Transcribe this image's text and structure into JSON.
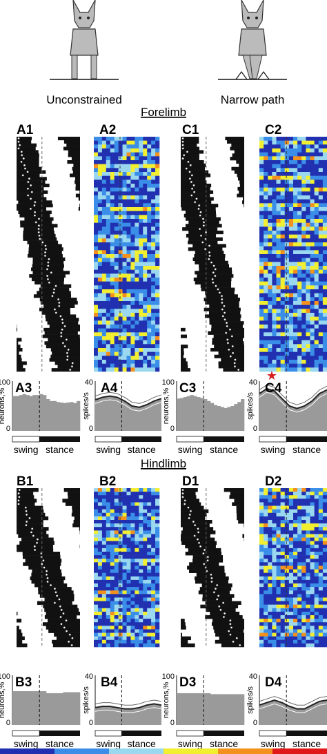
{
  "header": {
    "conditions": [
      "Unconstrained",
      "Narrow path"
    ],
    "limbs": [
      "Forelimb",
      "Hindlimb"
    ]
  },
  "panel_labels": {
    "forelimb": [
      "A1",
      "A2",
      "C1",
      "C2",
      "A3",
      "A4",
      "C3",
      "C4"
    ],
    "hindlimb": [
      "B1",
      "B2",
      "D1",
      "D2",
      "B3",
      "B4",
      "D3",
      "D4"
    ]
  },
  "axes": {
    "neurons_ylabel": "neurons,%",
    "spikes_ylabel": "spikes/s",
    "neurons_ytick_top": "100",
    "neurons_ytick_bottom": "0",
    "spikes_ytick_top": "40",
    "spikes_ytick_bottom": "0",
    "phase_labels": [
      "swing",
      "stance"
    ]
  },
  "colors": {
    "activity_bar": "#111111",
    "histogram_fill": "#9a9a9a",
    "heatmap_scale": [
      "#2030b0",
      "#3a8ee8",
      "#9ad8f0",
      "#f2ee30",
      "#f4901c",
      "#e01818"
    ],
    "star": "#d42020"
  },
  "chart_data": [
    {
      "type": "bar",
      "title": "A3",
      "ylabel": "neurons,%",
      "ylim": [
        0,
        100
      ],
      "values": [
        70,
        70,
        72,
        74,
        72,
        70,
        72,
        72,
        74,
        72,
        64,
        60,
        60,
        58,
        57,
        56,
        57,
        58,
        56,
        60
      ]
    },
    {
      "type": "line",
      "title": "A4",
      "ylabel": "spikes/s",
      "ylim": [
        0,
        40
      ],
      "series": [
        {
          "name": "mean",
          "values": [
            25,
            27,
            28,
            27,
            24,
            20,
            19,
            21,
            24,
            26
          ]
        }
      ]
    },
    {
      "type": "bar",
      "title": "C3",
      "ylabel": "neurons,%",
      "ylim": [
        0,
        100
      ],
      "values": [
        65,
        66,
        68,
        70,
        72,
        70,
        68,
        66,
        64,
        60,
        56,
        52,
        50,
        48,
        46,
        48,
        50,
        54,
        58,
        64
      ]
    },
    {
      "type": "line",
      "title": "C4",
      "ylabel": "spikes/s",
      "ylim": [
        0,
        40
      ],
      "series": [
        {
          "name": "mean",
          "values": [
            30,
            34,
            32,
            26,
            20,
            18,
            20,
            24,
            30,
            33
          ]
        }
      ],
      "annotation": "★"
    },
    {
      "type": "bar",
      "title": "B3",
      "ylabel": "neurons,%",
      "ylim": [
        0,
        100
      ],
      "values": [
        68,
        68,
        68,
        68,
        68,
        68,
        68,
        68,
        68,
        68,
        64,
        64,
        64,
        64,
        64,
        66,
        66,
        66,
        66,
        66
      ]
    },
    {
      "type": "line",
      "title": "B4",
      "ylabel": "spikes/s",
      "ylim": [
        0,
        40
      ],
      "series": [
        {
          "name": "mean",
          "values": [
            14,
            15,
            15,
            14,
            13,
            13,
            14,
            16,
            17,
            16
          ]
        }
      ]
    },
    {
      "type": "bar",
      "title": "D3",
      "ylabel": "neurons,%",
      "ylim": [
        0,
        100
      ],
      "values": [
        64,
        64,
        64,
        64,
        64,
        64,
        64,
        64,
        64,
        64,
        62,
        62,
        62,
        62,
        62,
        62,
        62,
        62,
        62,
        62
      ]
    },
    {
      "type": "line",
      "title": "D4",
      "ylabel": "spikes/s",
      "ylim": [
        0,
        40
      ],
      "series": [
        {
          "name": "mean",
          "values": [
            16,
            18,
            20,
            18,
            15,
            13,
            13,
            16,
            19,
            20
          ]
        }
      ]
    }
  ]
}
